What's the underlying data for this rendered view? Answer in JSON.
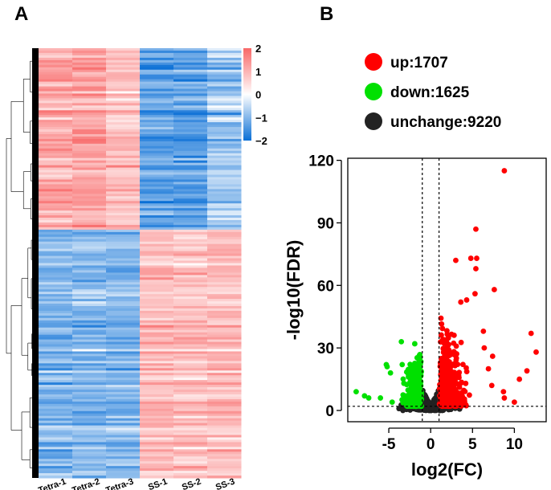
{
  "panels": {
    "a_label": "A",
    "b_label": "B"
  },
  "chart_data": [
    {
      "type": "heatmap",
      "title": "",
      "columns": [
        "Tetra-1",
        "Tetra-2",
        "Tetra-3",
        "SS-1",
        "SS-2",
        "SS-3"
      ],
      "colorbar": {
        "ticks": [
          "2",
          "1",
          "0",
          "−1",
          "−2"
        ],
        "tick_values": [
          2,
          1,
          0,
          -1,
          -2
        ],
        "range": [
          -2,
          2
        ],
        "low_color": "#0a6fd6",
        "mid_color": "#ffffff",
        "high_color": "#f86868"
      },
      "clusters": [
        {
          "name": "up in Tetra",
          "row_fraction": 0.42,
          "mean_values": [
            1.1,
            1.2,
            0.8,
            -1.3,
            -1.3,
            -0.8
          ]
        },
        {
          "name": "down in Tetra",
          "row_fraction": 0.58,
          "mean_values": [
            -1.0,
            -1.0,
            -1.0,
            0.9,
            0.8,
            0.9
          ]
        }
      ],
      "dendrogram": "rows"
    },
    {
      "type": "scatter",
      "title": "",
      "xlabel": "log2(FC)",
      "ylabel": "-log10(FDR)",
      "xlim": [
        -9.9,
        13.8
      ],
      "ylim": [
        -5.4,
        121
      ],
      "xticks": [
        -5,
        0,
        5,
        10
      ],
      "xtick_labels": [
        "-5",
        "0",
        "5",
        "10"
      ],
      "yticks": [
        0,
        30,
        60,
        90,
        120
      ],
      "ytick_labels": [
        "0",
        "30",
        "60",
        "90",
        "120"
      ],
      "thresholds": {
        "log2fc": [
          -1,
          1
        ],
        "neg_log10_fdr": 2
      },
      "legend": {
        "placement": "top",
        "entries": [
          {
            "label": "up:1707",
            "color": "#ff0000"
          },
          {
            "label": "down:1625",
            "color": "#00e000"
          },
          {
            "label": "unchange:9220",
            "color": "#222222"
          }
        ]
      },
      "series": [
        {
          "name": "up",
          "count": 1707,
          "color": "#ff0000",
          "notable_points": [
            [
              8.8,
              115
            ],
            [
              5.4,
              87
            ],
            [
              5.5,
              73
            ],
            [
              4.8,
              73
            ],
            [
              3,
              72
            ],
            [
              5.4,
              68
            ],
            [
              7.6,
              58
            ],
            [
              5.3,
              56
            ],
            [
              4.3,
              53
            ],
            [
              3.6,
              52
            ],
            [
              12,
              37
            ],
            [
              6.3,
              38
            ],
            [
              12.6,
              28
            ],
            [
              6.4,
              30
            ],
            [
              7.4,
              26
            ],
            [
              6.9,
              20
            ],
            [
              11.5,
              19
            ],
            [
              10.6,
              15
            ],
            [
              10,
              4
            ],
            [
              8.7,
              9
            ],
            [
              8.8,
              6
            ],
            [
              7.3,
              12
            ]
          ]
        },
        {
          "name": "down",
          "count": 1625,
          "color": "#00e000",
          "notable_points": [
            [
              -8.9,
              9
            ],
            [
              -7.9,
              7
            ],
            [
              -7.4,
              6
            ],
            [
              -6,
              6
            ],
            [
              -5.3,
              22
            ],
            [
              -5.2,
              21
            ],
            [
              -3.5,
              33
            ],
            [
              -1.9,
              32
            ],
            [
              -4.8,
              18
            ],
            [
              -3.4,
              22
            ],
            [
              -4.6,
              4
            ]
          ]
        },
        {
          "name": "unchange",
          "count": 9220,
          "color": "#222222",
          "notable_points": []
        }
      ]
    }
  ]
}
